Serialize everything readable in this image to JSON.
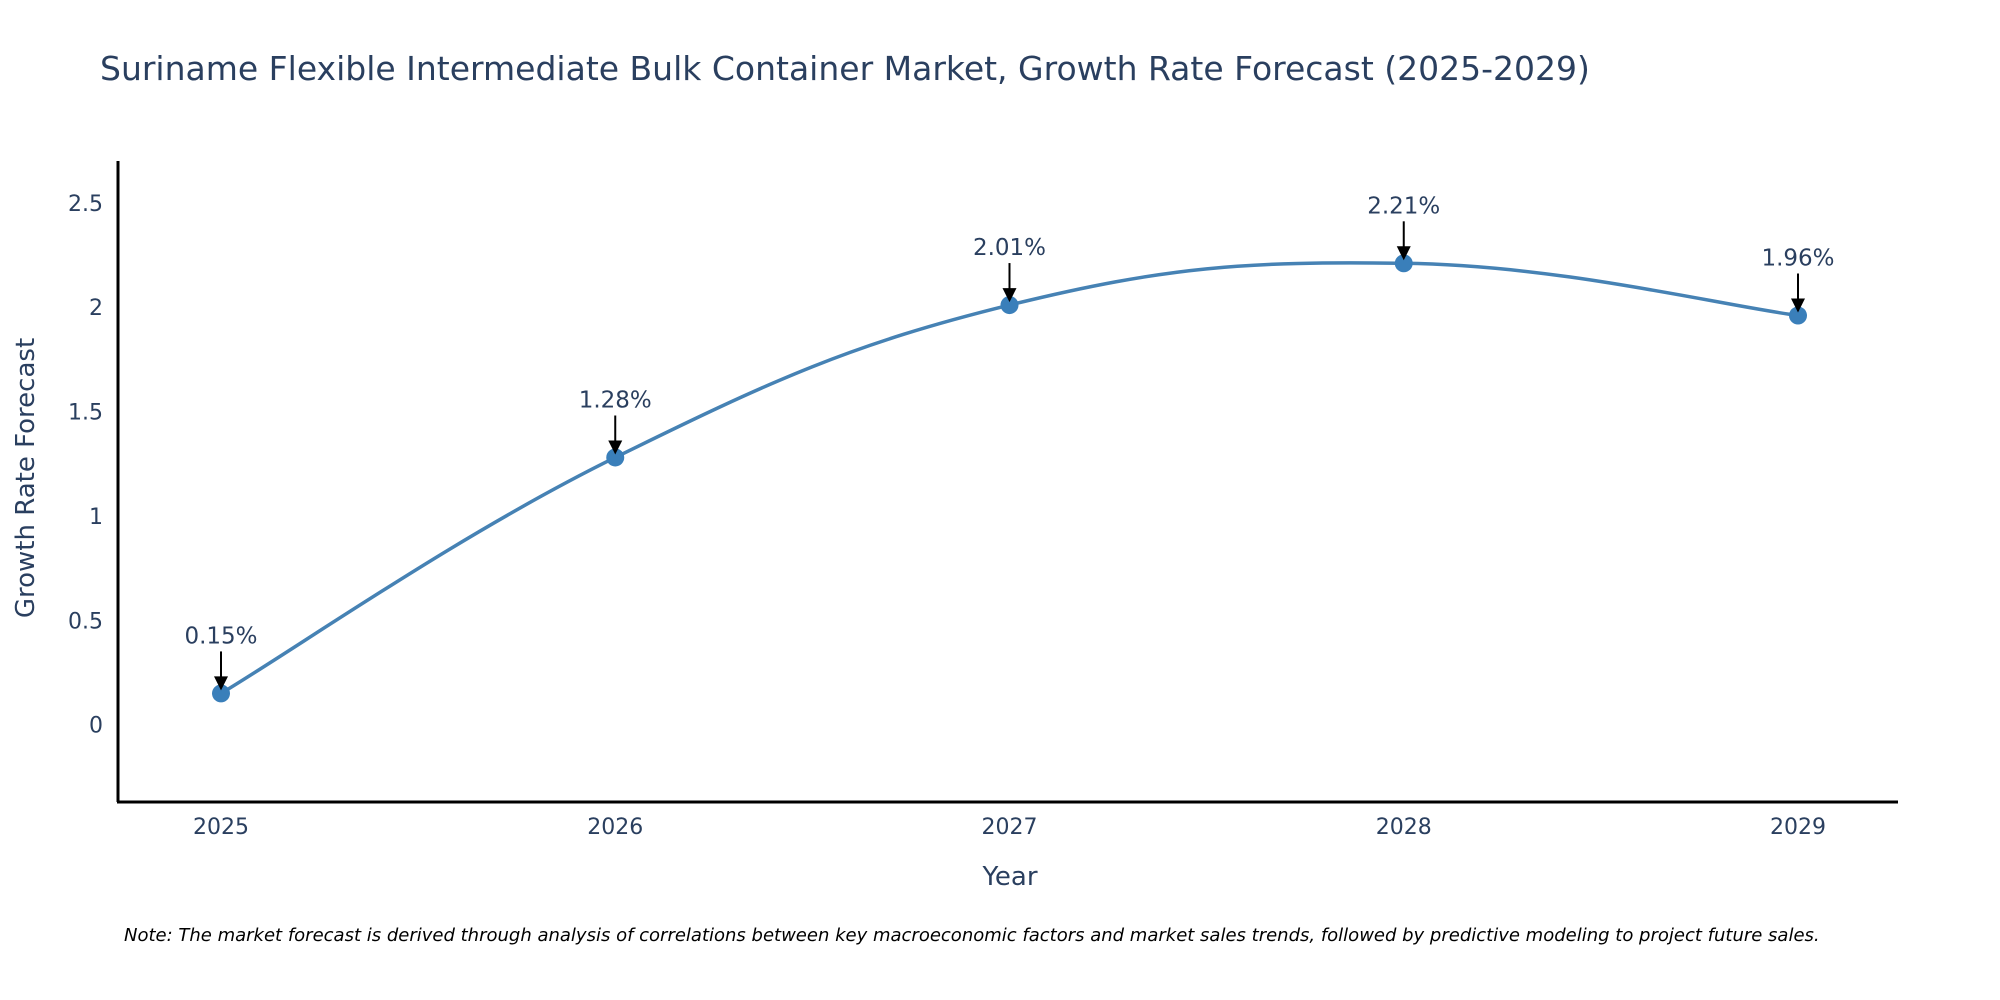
{
  "chart_data": {
    "type": "line",
    "title": "Suriname Flexible Intermediate Bulk Container Market, Growth Rate Forecast (2025-2029)",
    "xlabel": "Year",
    "ylabel": "Growth Rate Forecast",
    "categories": [
      "2025",
      "2026",
      "2027",
      "2028",
      "2029"
    ],
    "series": [
      {
        "name": "Growth Rate Forecast",
        "values": [
          0.15,
          1.28,
          2.01,
          2.21,
          1.96
        ],
        "color": "#4682b4",
        "line_shape": "spline",
        "markers": true
      }
    ],
    "annotations": [
      "0.15%",
      "1.28%",
      "2.01%",
      "2.21%",
      "1.96%"
    ],
    "x_ticks": [
      "2025",
      "2026",
      "2027",
      "2028",
      "2029"
    ],
    "y_ticks": [
      "0",
      "0.5",
      "1",
      "1.5",
      "2",
      "2.5"
    ],
    "y_tick_values": [
      0,
      0.5,
      1,
      1.5,
      2,
      2.5
    ],
    "ylim": [
      -0.37,
      2.7
    ],
    "grid": false,
    "legend": "none",
    "note": "Note: The market forecast is derived through analysis of correlations between key macroeconomic factors and market sales trends, followed by predictive modeling to project future sales."
  },
  "colors": {
    "line": "#4682b4",
    "marker": "#3a7fba",
    "axis": "#000000",
    "text": "#2a3f5f",
    "arrow": "#000000"
  }
}
